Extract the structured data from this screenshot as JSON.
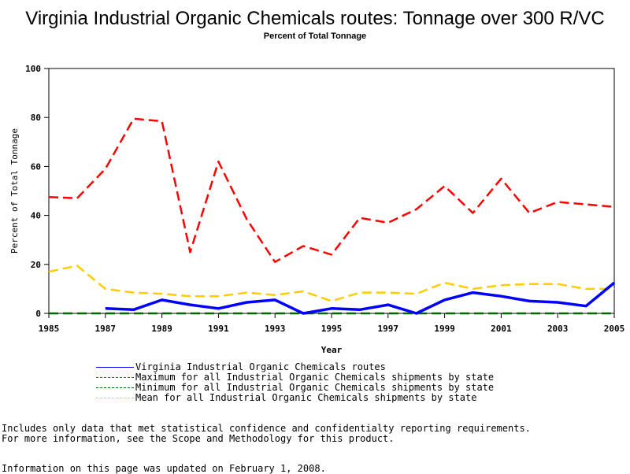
{
  "chart_data": {
    "type": "line",
    "title": "Virginia Industrial Organic Chemicals routes: Tonnage over 300 R/VC",
    "subtitle": "Percent of Total Tonnage",
    "xlabel": "Year",
    "ylabel": "Percent of Total Tonnage",
    "xlim": [
      1985,
      2005
    ],
    "ylim": [
      0,
      100
    ],
    "x_ticks": [
      "1985",
      "1987",
      "1989",
      "1991",
      "1993",
      "1995",
      "1997",
      "1999",
      "2001",
      "2003",
      "2005"
    ],
    "y_ticks": [
      "0",
      "20",
      "40",
      "60",
      "80",
      "100"
    ],
    "legend_position": "bottom",
    "series": [
      {
        "name": "Virginia Industrial Organic Chemicals routes",
        "color": "#0000ff",
        "style": "solid",
        "x": [
          1987,
          1988,
          1989,
          1990,
          1991,
          1992,
          1993,
          1994,
          1995,
          1996,
          1997,
          1998,
          1999,
          2000,
          2001,
          2002,
          2003,
          2004,
          2005
        ],
        "values": [
          2.0,
          1.5,
          5.5,
          3.5,
          2.0,
          4.5,
          5.5,
          0.0,
          2.0,
          1.5,
          3.5,
          0.0,
          5.5,
          8.5,
          7.0,
          5.0,
          4.5,
          3.0,
          12.5
        ]
      },
      {
        "name": "Maximum for all Industrial Organic Chemicals shipments by state",
        "color": "#ff0000",
        "style": "dashed",
        "x": [
          1985,
          1986,
          1987,
          1988,
          1989,
          1990,
          1991,
          1992,
          1993,
          1994,
          1995,
          1996,
          1997,
          1998,
          1999,
          2000,
          2001,
          2002,
          2003,
          2004,
          2005
        ],
        "values": [
          47.5,
          47.0,
          59.0,
          79.5,
          78.5,
          25.0,
          62.0,
          38.5,
          21.0,
          27.5,
          24.0,
          39.0,
          37.0,
          42.5,
          52.0,
          41.0,
          55.0,
          41.0,
          45.5,
          44.5,
          43.5
        ]
      },
      {
        "name": "Minimum for all Industrial Organic Chemicals shipments by state",
        "color": "#006600",
        "style": "dashed",
        "x": [
          1985,
          1986,
          1987,
          1988,
          1989,
          1990,
          1991,
          1992,
          1993,
          1994,
          1995,
          1996,
          1997,
          1998,
          1999,
          2000,
          2001,
          2002,
          2003,
          2004,
          2005
        ],
        "values": [
          0,
          0,
          0,
          0,
          0,
          0,
          0,
          0,
          0,
          0,
          0,
          0,
          0,
          0,
          0,
          0,
          0,
          0,
          0,
          0,
          0
        ]
      },
      {
        "name": "Mean for all Industrial Organic Chemicals shipments by state",
        "color": "#ffcc00",
        "style": "dashed",
        "x": [
          1985,
          1986,
          1987,
          1988,
          1989,
          1990,
          1991,
          1992,
          1993,
          1994,
          1995,
          1996,
          1997,
          1998,
          1999,
          2000,
          2001,
          2002,
          2003,
          2004,
          2005
        ],
        "values": [
          17.0,
          19.5,
          10.0,
          8.5,
          8.0,
          7.0,
          7.0,
          8.5,
          7.5,
          9.0,
          5.0,
          8.5,
          8.5,
          8.0,
          12.5,
          10.0,
          11.5,
          12.0,
          12.0,
          10.0,
          10.0
        ]
      }
    ]
  },
  "footnotes": {
    "line1": "Includes only data that met statistical confidence and confidentialty reporting requirements.",
    "line2": "For more information, see the Scope and Methodology for this product.",
    "updated": "Information on this page was updated on February 1, 2008."
  }
}
